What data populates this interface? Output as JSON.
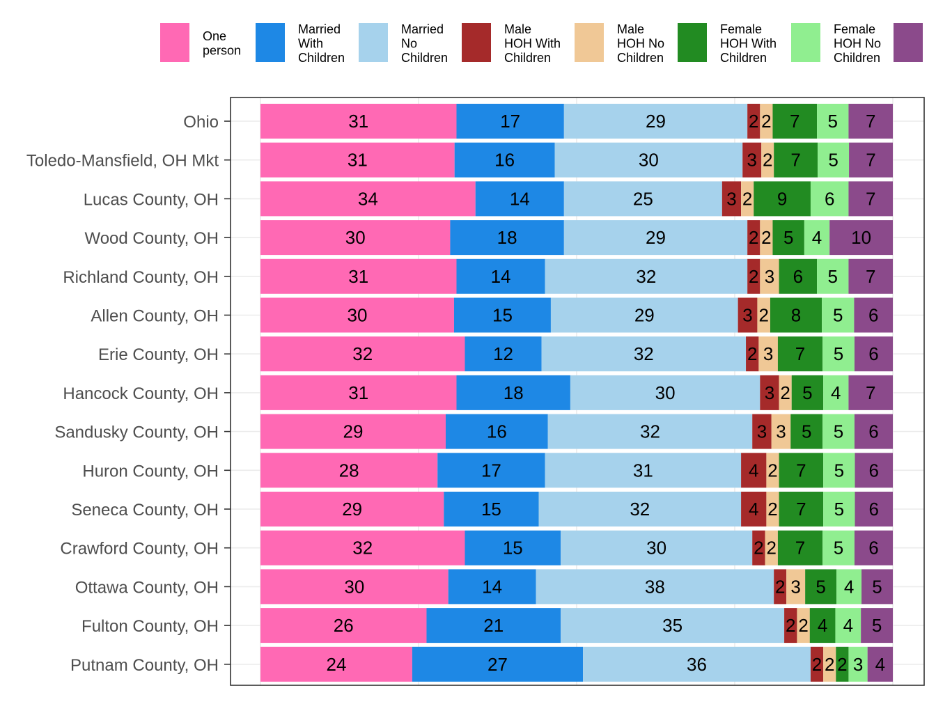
{
  "chart_data": {
    "type": "bar",
    "orientation": "horizontal",
    "stacked": "percent",
    "grid": true,
    "legend_position": "top",
    "categories": [
      "Ohio",
      "Toledo-Mansfield, OH Mkt",
      "Lucas County, OH",
      "Wood County, OH",
      "Richland County, OH",
      "Allen County, OH",
      "Erie County, OH",
      "Hancock County, OH",
      "Sandusky County, OH",
      "Huron County, OH",
      "Seneca County, OH",
      "Crawford County, OH",
      "Ottawa County, OH",
      "Fulton County, OH",
      "Putnam County, OH"
    ],
    "series": [
      {
        "name": "One person",
        "label_lines": [
          "One",
          "person"
        ],
        "color": "#ff69b4",
        "values": [
          31,
          31,
          34,
          30,
          31,
          30,
          32,
          31,
          29,
          28,
          29,
          32,
          30,
          26,
          24
        ]
      },
      {
        "name": "Married With Children",
        "label_lines": [
          "Married",
          "With",
          "Children"
        ],
        "color": "#1e88e5",
        "values": [
          17,
          16,
          14,
          18,
          14,
          15,
          12,
          18,
          16,
          17,
          15,
          15,
          14,
          21,
          27
        ]
      },
      {
        "name": "Married No Children",
        "label_lines": [
          "Married",
          "No",
          "Children"
        ],
        "color": "#a6d2ec",
        "values": [
          29,
          30,
          25,
          29,
          32,
          29,
          32,
          30,
          32,
          31,
          32,
          30,
          38,
          35,
          36
        ]
      },
      {
        "name": "Male HOH With Children",
        "label_lines": [
          "Male",
          "HOH With",
          "Children"
        ],
        "color": "#a52a2a",
        "values": [
          2,
          3,
          3,
          2,
          2,
          3,
          2,
          3,
          3,
          4,
          4,
          2,
          2,
          2,
          2
        ]
      },
      {
        "name": "Male HOH No Children",
        "label_lines": [
          "Male",
          "HOH No",
          "Children"
        ],
        "color": "#f0c896",
        "values": [
          2,
          2,
          2,
          2,
          3,
          2,
          3,
          2,
          3,
          2,
          2,
          2,
          3,
          2,
          2
        ]
      },
      {
        "name": "Female HOH With Children",
        "label_lines": [
          "Female",
          "HOH With",
          "Children"
        ],
        "color": "#228b22",
        "values": [
          7,
          7,
          9,
          5,
          6,
          8,
          7,
          5,
          5,
          7,
          7,
          7,
          5,
          4,
          2
        ]
      },
      {
        "name": "Female HOH No Children",
        "label_lines": [
          "Female",
          "HOH No",
          "Children"
        ],
        "color": "#90ee90",
        "values": [
          5,
          5,
          6,
          4,
          5,
          5,
          5,
          4,
          5,
          5,
          5,
          5,
          4,
          4,
          3
        ]
      },
      {
        "name": "",
        "label_lines": [],
        "color": "#8b4a8b",
        "values": [
          7,
          7,
          7,
          10,
          7,
          6,
          6,
          7,
          6,
          6,
          6,
          6,
          5,
          5,
          4
        ]
      }
    ]
  }
}
